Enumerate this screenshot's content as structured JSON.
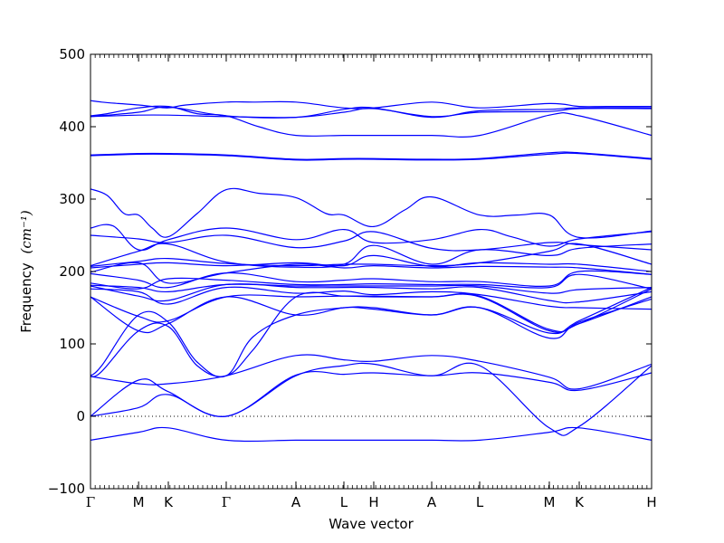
{
  "chart_data": {
    "type": "line",
    "title": "",
    "xlabel": "Wave vector",
    "ylabel": "Frequency",
    "ylabel_unit": "(cm⁻¹)",
    "ylim": [
      -100,
      500
    ],
    "yticks": [
      -100,
      0,
      100,
      200,
      300,
      400,
      500
    ],
    "zero_line": "dotted",
    "grid": false,
    "legend": "none",
    "line_color": "#0000ff",
    "high_symmetry_points": [
      {
        "label": "Γ",
        "x": 0.0
      },
      {
        "label": "M",
        "x": 0.0857
      },
      {
        "label": "K",
        "x": 0.1387
      },
      {
        "label": "Γ",
        "x": 0.2419
      },
      {
        "label": "A",
        "x": 0.3661
      },
      {
        "label": "L",
        "x": 0.4516
      },
      {
        "label": "H",
        "x": 0.5048
      },
      {
        "label": "A",
        "x": 0.6081
      },
      {
        "label": "L",
        "x": 0.6936
      },
      {
        "label": "M",
        "x": 0.8177
      },
      {
        "label": "K",
        "x": 0.871
      },
      {
        "label": "H",
        "x": 1.0
      }
    ],
    "series": [
      {
        "x": [
          0,
          0.02,
          0.05,
          0.0857,
          0.11,
          0.1387,
          0.17,
          0.2419,
          0.29,
          0.3661,
          0.4516,
          0.5048,
          0.6081,
          0.6936,
          0.8177,
          0.871,
          0.92,
          1.0
        ],
        "y": [
          436,
          434,
          432,
          430,
          428,
          426,
          430,
          434,
          434,
          434,
          426,
          426,
          434,
          426,
          432,
          428,
          428,
          428
        ]
      },
      {
        "x": [
          0,
          0.03,
          0.0857,
          0.1387,
          0.19,
          0.2419,
          0.3,
          0.3661,
          0.4516,
          0.5048,
          0.6081,
          0.6936,
          0.8177,
          0.871,
          1.0
        ],
        "y": [
          415,
          418,
          426,
          428,
          418,
          415,
          400,
          388,
          388,
          388,
          388,
          388,
          416,
          415,
          388
        ]
      },
      {
        "x": [
          0,
          0.0857,
          0.1387,
          0.2419,
          0.3661,
          0.4516,
          0.5048,
          0.6081,
          0.6936,
          0.8177,
          0.871,
          1.0
        ],
        "y": [
          414,
          420,
          427,
          415,
          413,
          424,
          426,
          413,
          422,
          424,
          426,
          426
        ]
      },
      {
        "x": [
          0,
          0.0857,
          0.1387,
          0.2419,
          0.3661,
          0.4516,
          0.5048,
          0.6081,
          0.6936,
          0.8177,
          0.871,
          1.0
        ],
        "y": [
          414,
          416,
          416,
          414,
          413,
          420,
          425,
          414,
          420,
          421,
          425,
          425
        ]
      },
      {
        "x": [
          0,
          0.0857,
          0.1387,
          0.2419,
          0.3661,
          0.4516,
          0.5048,
          0.6081,
          0.6936,
          0.8177,
          0.871,
          1.0
        ],
        "y": [
          361,
          363,
          363,
          361,
          355,
          356,
          356,
          355,
          356,
          364,
          364,
          356
        ]
      },
      {
        "x": [
          0,
          0.0857,
          0.1387,
          0.2419,
          0.3661,
          0.4516,
          0.5048,
          0.6081,
          0.6936,
          0.8177,
          0.871,
          1.0
        ],
        "y": [
          360,
          362,
          362,
          360,
          354,
          355,
          355,
          354,
          355,
          362,
          363,
          355
        ]
      },
      {
        "x": [
          0,
          0.03,
          0.06,
          0.0857,
          0.11,
          0.1387,
          0.19,
          0.2419,
          0.3,
          0.3661,
          0.42,
          0.4516,
          0.5048,
          0.56,
          0.6081,
          0.6936,
          0.76,
          0.8177,
          0.871,
          1.0
        ],
        "y": [
          314,
          305,
          280,
          278,
          260,
          248,
          280,
          313,
          308,
          302,
          280,
          278,
          262,
          285,
          303,
          278,
          278,
          278,
          247,
          256
        ]
      },
      {
        "x": [
          0,
          0.04,
          0.0857,
          0.1387,
          0.2419,
          0.3661,
          0.4516,
          0.5048,
          0.6081,
          0.6936,
          0.75,
          0.8177,
          0.871,
          1.0
        ],
        "y": [
          260,
          263,
          230,
          244,
          260,
          244,
          258,
          240,
          244,
          258,
          248,
          235,
          245,
          255
        ]
      },
      {
        "x": [
          0,
          0.0857,
          0.1387,
          0.2419,
          0.3661,
          0.4516,
          0.5048,
          0.6081,
          0.6936,
          0.8177,
          0.871,
          1.0
        ],
        "y": [
          250,
          245,
          240,
          250,
          233,
          242,
          255,
          232,
          230,
          240,
          237,
          230
        ]
      },
      {
        "x": [
          0,
          0.0857,
          0.1387,
          0.2419,
          0.3661,
          0.4516,
          0.5048,
          0.6081,
          0.6936,
          0.8177,
          0.871,
          1.0
        ],
        "y": [
          208,
          228,
          238,
          213,
          206,
          210,
          236,
          210,
          230,
          222,
          232,
          238
        ]
      },
      {
        "x": [
          0,
          0.0857,
          0.1387,
          0.2419,
          0.3661,
          0.4516,
          0.5048,
          0.6081,
          0.6936,
          0.8177,
          0.871,
          1.0
        ],
        "y": [
          207,
          214,
          218,
          211,
          208,
          210,
          210,
          208,
          212,
          228,
          238,
          210
        ]
      },
      {
        "x": [
          0,
          0.0857,
          0.1387,
          0.2419,
          0.3661,
          0.4516,
          0.5048,
          0.6081,
          0.6936,
          0.8177,
          0.871,
          1.0
        ],
        "y": [
          205,
          210,
          212,
          208,
          212,
          208,
          222,
          207,
          212,
          210,
          210,
          200
        ]
      },
      {
        "x": [
          0,
          0.0857,
          0.1387,
          0.2419,
          0.3661,
          0.4516,
          0.5048,
          0.6081,
          0.6936,
          0.8177,
          0.871,
          1.0
        ],
        "y": [
          199,
          212,
          184,
          198,
          210,
          205,
          208,
          205,
          207,
          206,
          205,
          196
        ]
      },
      {
        "x": [
          0,
          0.0857,
          0.1387,
          0.2419,
          0.3661,
          0.4516,
          0.5048,
          0.6081,
          0.6936,
          0.8177,
          0.871,
          1.0
        ],
        "y": [
          197,
          188,
          178,
          198,
          186,
          188,
          190,
          186,
          186,
          180,
          200,
          196
        ]
      },
      {
        "x": [
          0,
          0.0857,
          0.1387,
          0.2419,
          0.3661,
          0.4516,
          0.5048,
          0.6081,
          0.6936,
          0.8177,
          0.871,
          1.0
        ],
        "y": [
          184,
          176,
          190,
          188,
          182,
          182,
          183,
          182,
          182,
          178,
          196,
          176
        ]
      },
      {
        "x": [
          0,
          0.0857,
          0.1387,
          0.2419,
          0.3661,
          0.4516,
          0.5048,
          0.6081,
          0.6936,
          0.8177,
          0.871,
          1.0
        ],
        "y": [
          181,
          178,
          172,
          182,
          180,
          180,
          180,
          180,
          180,
          170,
          175,
          178
        ]
      },
      {
        "x": [
          0,
          0.0857,
          0.1387,
          0.2419,
          0.3661,
          0.4516,
          0.5048,
          0.6081,
          0.6936,
          0.8177,
          0.871,
          1.0
        ],
        "y": [
          180,
          166,
          160,
          182,
          178,
          178,
          178,
          176,
          178,
          160,
          158,
          172
        ]
      },
      {
        "x": [
          0,
          0.0857,
          0.1387,
          0.2419,
          0.3661,
          0.4516,
          0.5048,
          0.6081,
          0.6936,
          0.8177,
          0.871,
          1.0
        ],
        "y": [
          176,
          172,
          155,
          178,
          170,
          173,
          168,
          172,
          168,
          152,
          150,
          148
        ]
      },
      {
        "x": [
          0,
          0.0857,
          0.1387,
          0.2419,
          0.3661,
          0.4516,
          0.5048,
          0.6081,
          0.6936,
          0.8177,
          0.871,
          1.0
        ],
        "y": [
          165,
          138,
          132,
          165,
          165,
          166,
          166,
          165,
          165,
          118,
          128,
          165
        ]
      },
      {
        "x": [
          0,
          0.0857,
          0.1387,
          0.2419,
          0.3661,
          0.4516,
          0.5048,
          0.6081,
          0.6936,
          0.8177,
          0.871,
          1.0
        ],
        "y": [
          165,
          118,
          128,
          165,
          140,
          150,
          148,
          140,
          150,
          108,
          130,
          162
        ]
      },
      {
        "x": [
          0,
          0.02,
          0.0857,
          0.1387,
          0.19,
          0.2419,
          0.29,
          0.3661,
          0.4516,
          0.5048,
          0.6081,
          0.6936,
          0.8177,
          0.871,
          1.0
        ],
        "y": [
          56,
          70,
          140,
          130,
          75,
          56,
          110,
          140,
          150,
          150,
          140,
          150,
          115,
          132,
          178
        ]
      },
      {
        "x": [
          0,
          0.02,
          0.0857,
          0.1387,
          0.19,
          0.2419,
          0.29,
          0.3661,
          0.4516,
          0.5048,
          0.6081,
          0.6936,
          0.8177,
          0.871,
          1.0
        ],
        "y": [
          55,
          62,
          118,
          124,
          70,
          56,
          92,
          165,
          166,
          165,
          165,
          166,
          120,
          128,
          176
        ]
      },
      {
        "x": [
          0,
          0.0857,
          0.1387,
          0.2419,
          0.3661,
          0.4516,
          0.5048,
          0.6081,
          0.6936,
          0.8177,
          0.871,
          1.0
        ],
        "y": [
          55,
          45,
          45,
          56,
          84,
          78,
          76,
          84,
          76,
          54,
          38,
          72
        ]
      },
      {
        "x": [
          0,
          0.0857,
          0.1387,
          0.2419,
          0.3661,
          0.4516,
          0.5048,
          0.6081,
          0.6936,
          0.8177,
          0.871,
          1.0
        ],
        "y": [
          0,
          50,
          34,
          0,
          57,
          58,
          60,
          56,
          60,
          47,
          36,
          60
        ]
      },
      {
        "x": [
          0,
          0.0857,
          0.1387,
          0.2419,
          0.3661,
          0.4516,
          0.5048,
          0.6081,
          0.6936,
          0.8177,
          0.871,
          1.0
        ],
        "y": [
          0,
          12,
          30,
          0,
          56,
          70,
          72,
          56,
          70,
          -16,
          -14,
          70
        ]
      },
      {
        "x": [
          0,
          0.0857,
          0.1387,
          0.2419,
          0.3661,
          0.4516,
          0.5048,
          0.6081,
          0.6936,
          0.8177,
          0.871,
          1.0
        ],
        "y": [
          -33,
          -22,
          -16,
          -33,
          -33,
          -33,
          -33,
          -33,
          -33,
          -22,
          -16,
          -33
        ]
      }
    ]
  }
}
